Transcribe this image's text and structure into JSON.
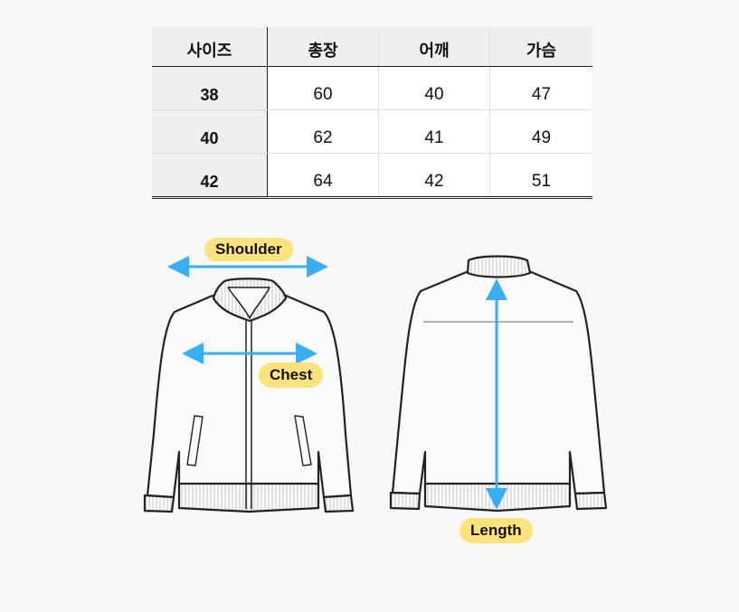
{
  "table": {
    "headers": [
      "사이즈",
      "총장",
      "어깨",
      "가슴"
    ],
    "rows": [
      [
        "38",
        "60",
        "40",
        "47"
      ],
      [
        "40",
        "62",
        "41",
        "49"
      ],
      [
        "42",
        "64",
        "42",
        "51"
      ]
    ]
  },
  "diagram": {
    "labels": {
      "shoulder": "Shoulder",
      "chest": "Chest",
      "length": "Length"
    },
    "colors": {
      "arrow": "#3aaef5",
      "label_bg": "#fde27e"
    }
  }
}
